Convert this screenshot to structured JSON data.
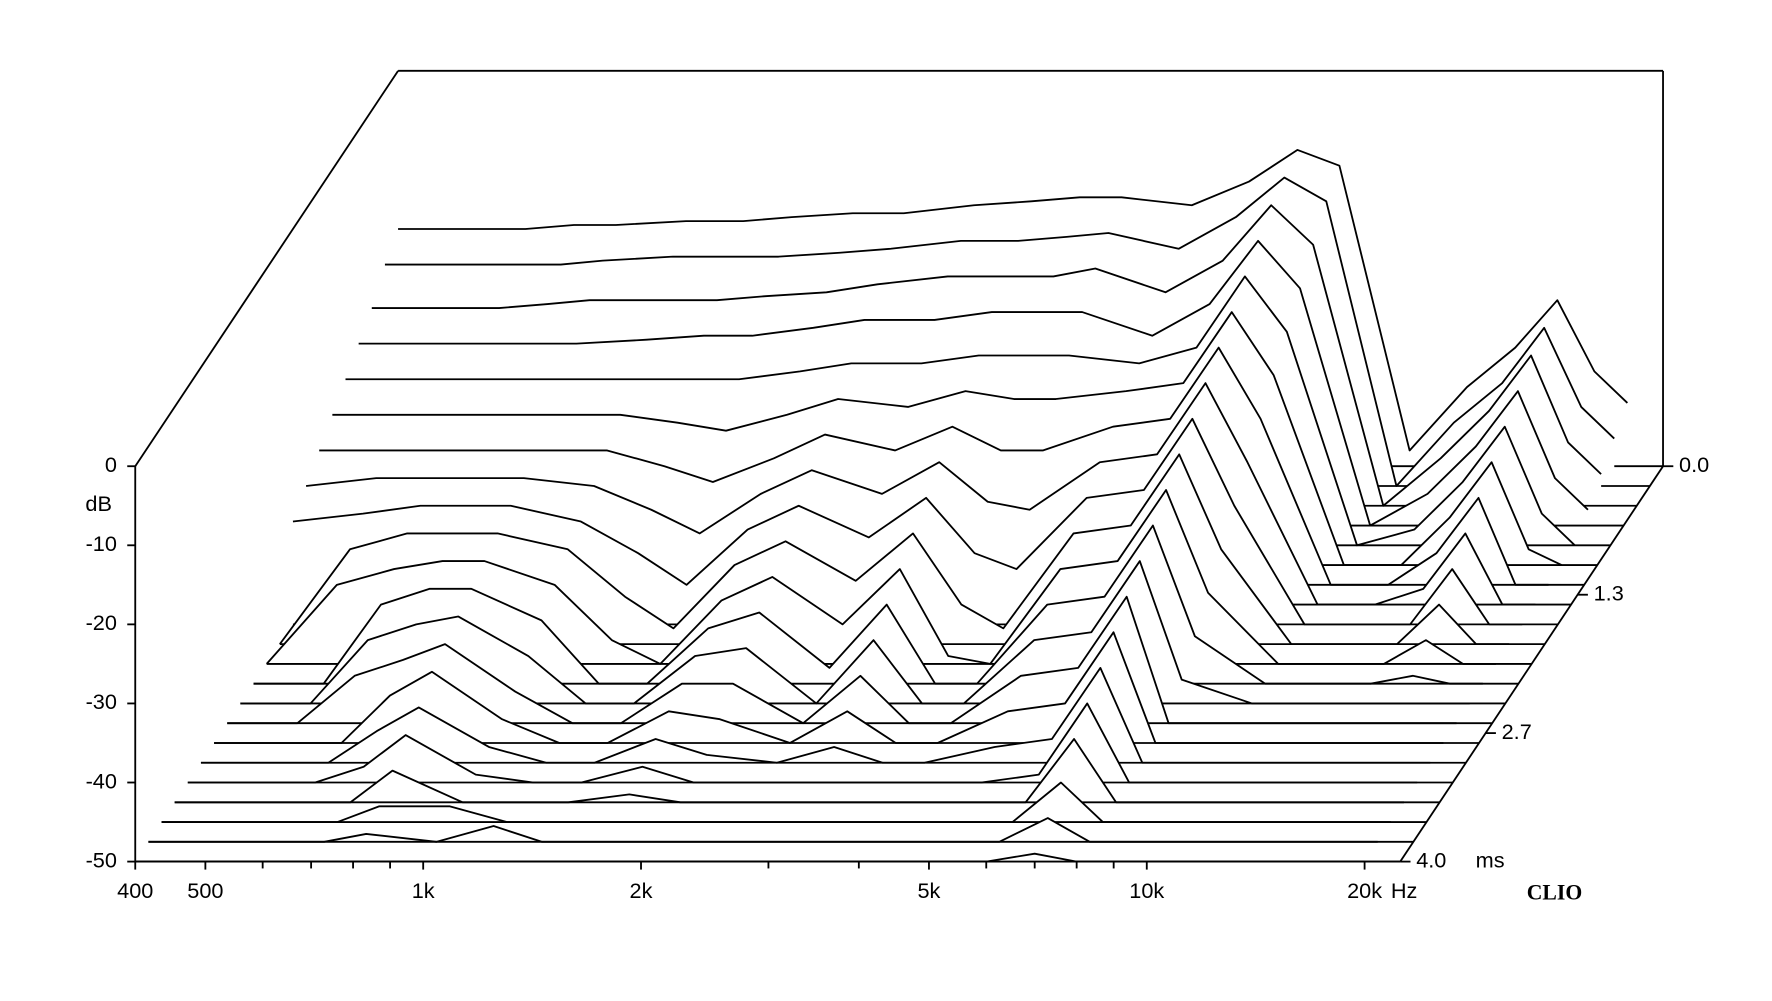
{
  "chart_data": {
    "type": "waterfall",
    "x": [
      400,
      500,
      600,
      700,
      800,
      1000,
      1200,
      1400,
      1700,
      2000,
      2500,
      3000,
      3500,
      4000,
      5000,
      6000,
      7000,
      8000,
      10000,
      12000,
      14000,
      16000,
      18000,
      20000
    ],
    "xscale": "log",
    "xlim": [
      400,
      22400
    ],
    "xticks": [
      {
        "value": 400,
        "label": "400"
      },
      {
        "value": 500,
        "label": "500"
      },
      {
        "value": 1000,
        "label": "1k"
      },
      {
        "value": 2000,
        "label": "2k"
      },
      {
        "value": 5000,
        "label": "5k"
      },
      {
        "value": 10000,
        "label": "10k"
      },
      {
        "value": 20000,
        "label": "20k"
      }
    ],
    "xminor": [
      600,
      700,
      800,
      900,
      3000,
      4000,
      6000,
      7000,
      8000,
      9000
    ],
    "x_unit": "Hz",
    "ylabel": "dB",
    "ylim": [
      -50,
      0
    ],
    "yticks": [
      0,
      -10,
      -20,
      -30,
      -40,
      -50
    ],
    "z": [
      0,
      0.2,
      0.4,
      0.6,
      0.8,
      1.0,
      1.2,
      1.4,
      1.6,
      1.8,
      2.0,
      2.2,
      2.4,
      2.6,
      2.8,
      3.0,
      3.2,
      3.4,
      3.6,
      3.8,
      4.0
    ],
    "zlim": [
      0,
      4
    ],
    "zticks": [
      {
        "value": 0,
        "label": "0.0"
      },
      {
        "value": 1.3,
        "label": "1.3"
      },
      {
        "value": 2.7,
        "label": "2.7"
      },
      {
        "value": 4,
        "label": "4.0"
      }
    ],
    "z_unit": "ms",
    "watermark": "CLIO",
    "color": "#000000",
    "series": [
      {
        "values": [
          -20,
          -20,
          -20,
          -19.5,
          -19.5,
          -19,
          -19,
          -18.5,
          -18,
          -18,
          -17,
          -16.5,
          -16,
          -16,
          -17,
          -14,
          -10,
          -12,
          -48,
          -40,
          -35,
          -29,
          -38,
          -42
        ]
      },
      {
        "values": [
          -22,
          -22,
          -22,
          -22,
          -21.5,
          -21,
          -21,
          -21,
          -20.5,
          -20,
          -19,
          -19,
          -18.5,
          -18,
          -20,
          -16,
          -11,
          -14,
          -50,
          -42,
          -37,
          -30,
          -40,
          -44
        ]
      },
      {
        "values": [
          -25,
          -25,
          -25,
          -24.5,
          -24,
          -24,
          -24,
          -23.5,
          -23,
          -22,
          -21,
          -21,
          -21,
          -20,
          -23,
          -19,
          -12,
          -17,
          -50,
          -44,
          -38,
          -31,
          -42,
          -46
        ]
      },
      {
        "values": [
          -27,
          -27,
          -27,
          -27,
          -27,
          -26.5,
          -26,
          -26,
          -25,
          -24,
          -24,
          -23,
          -23,
          -23,
          -26,
          -22,
          -14,
          -20,
          -50,
          -46,
          -40,
          -33,
          -44,
          -48
        ]
      },
      {
        "values": [
          -29,
          -29,
          -29,
          -29,
          -29,
          -29,
          -29,
          -29,
          -28,
          -27,
          -27,
          -26,
          -26,
          -26,
          -27,
          -25,
          -16,
          -23,
          -50,
          -48,
          -42,
          -35,
          -46,
          -50
        ]
      },
      {
        "values": [
          -31,
          -31,
          -31,
          -31,
          -31,
          -31,
          -32,
          -33,
          -31,
          -29,
          -30,
          -28,
          -29,
          -29,
          -28,
          -27,
          -18,
          -26,
          -50,
          -50,
          -44,
          -37,
          -48,
          -50
        ]
      },
      {
        "values": [
          -33,
          -33,
          -33,
          -33,
          -33,
          -33,
          -35,
          -37,
          -34,
          -31,
          -33,
          -30,
          -33,
          -33,
          -30,
          -29,
          -20,
          -29,
          -50,
          -50,
          -46,
          -39,
          -50,
          -50
        ]
      },
      {
        "values": [
          -35,
          -34,
          -34,
          -34,
          -34,
          -35,
          -38,
          -41,
          -36,
          -33,
          -36,
          -32,
          -37,
          -38,
          -32,
          -31,
          -22,
          -32,
          -50,
          -50,
          -48,
          -41,
          -50,
          -50
        ]
      },
      {
        "values": [
          -37,
          -36,
          -35,
          -35,
          -35,
          -37,
          -41,
          -45,
          -38,
          -35,
          -39,
          -34,
          -41,
          -43,
          -34,
          -33,
          -24,
          -35,
          -50,
          -50,
          -50,
          -43,
          -50,
          -50
        ]
      },
      {
        "values": [
          -50,
          -38,
          -36,
          -36,
          -36,
          -38,
          -44,
          -48,
          -40,
          -37,
          -42,
          -36,
          -45,
          -48,
          -36,
          -35,
          -26,
          -38,
          -50,
          -50,
          -50,
          -45,
          -50,
          -50
        ]
      },
      {
        "values": [
          -50,
          -40,
          -38,
          -37,
          -37,
          -40,
          -47,
          -50,
          -42,
          -39,
          -45,
          -38,
          -49,
          -50,
          -38,
          -37,
          -28,
          -41,
          -50,
          -50,
          -50,
          -47,
          -50,
          -50
        ]
      },
      {
        "values": [
          -50,
          -50,
          -40,
          -38,
          -38,
          -42,
          -50,
          -50,
          -43,
          -41,
          -48,
          -40,
          -50,
          -50,
          -40,
          -39,
          -30,
          -44,
          -50,
          -50,
          -50,
          -49,
          -50,
          -50
        ]
      },
      {
        "values": [
          -50,
          -50,
          -42,
          -40,
          -39,
          -44,
          -50,
          -50,
          -44,
          -43,
          -50,
          -42,
          -50,
          -50,
          -42,
          -41,
          -32,
          -47,
          -50,
          -50,
          -50,
          -50,
          -50,
          -50
        ]
      },
      {
        "values": [
          -50,
          -50,
          -44,
          -42,
          -40,
          -46,
          -50,
          -50,
          -45,
          -45,
          -50,
          -44,
          -50,
          -50,
          -44,
          -43,
          -34,
          -50,
          -50,
          -50,
          -50,
          -50,
          -50,
          -50
        ]
      },
      {
        "values": [
          -50,
          -50,
          -50,
          -44,
          -41,
          -47,
          -50,
          -50,
          -46,
          -47,
          -50,
          -46,
          -50,
          -50,
          -46,
          -45,
          -36,
          -50,
          -50,
          -50,
          -50,
          -50,
          -50,
          -50
        ]
      },
      {
        "values": [
          -50,
          -50,
          -50,
          -46,
          -43,
          -48,
          -50,
          -50,
          -47,
          -49,
          -50,
          -48,
          -50,
          -50,
          -48,
          -47,
          -38,
          -50,
          -50,
          -50,
          -50,
          -50,
          -50,
          -50
        ]
      },
      {
        "values": [
          -50,
          -50,
          -50,
          -48,
          -44,
          -49,
          -50,
          -50,
          -48,
          -50,
          -50,
          -50,
          -50,
          -50,
          -50,
          -49,
          -40,
          -50,
          -50,
          -50,
          -50,
          -50,
          -50,
          -50
        ]
      },
      {
        "values": [
          -50,
          -50,
          -50,
          -50,
          -46,
          -50,
          -50,
          -50,
          -49,
          -50,
          -50,
          -50,
          -50,
          -50,
          -50,
          -50,
          -42,
          -50,
          -50,
          -50,
          -50,
          -50,
          -50,
          -50
        ]
      },
      {
        "values": [
          -50,
          -50,
          -50,
          -50,
          -48,
          -48,
          -50,
          -50,
          -50,
          -50,
          -50,
          -50,
          -50,
          -50,
          -50,
          -50,
          -45,
          -50,
          -50,
          -50,
          -50,
          -50,
          -50,
          -50
        ]
      },
      {
        "values": [
          -50,
          -50,
          -50,
          -50,
          -49,
          -50,
          -48,
          -50,
          -50,
          -50,
          -50,
          -50,
          -50,
          -50,
          -50,
          -50,
          -47,
          -50,
          -50,
          -50,
          -50,
          -50,
          -50,
          -50
        ]
      },
      {
        "values": [
          -50,
          -50,
          -50,
          -50,
          -50,
          -50,
          -50,
          -50,
          -50,
          -50,
          -50,
          -50,
          -50,
          -50,
          -50,
          -50,
          -49,
          -50,
          -50,
          -50,
          -50,
          -50,
          -50,
          -50
        ]
      }
    ]
  }
}
